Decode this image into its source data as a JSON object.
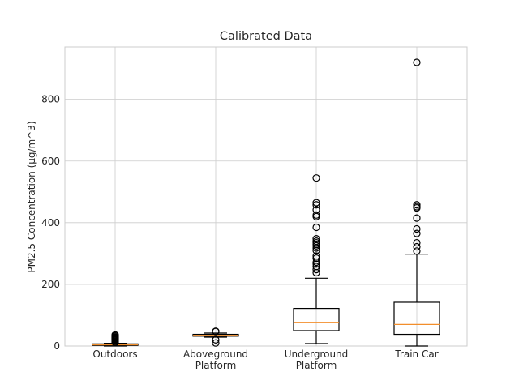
{
  "chart_data": {
    "type": "box",
    "title": "Calibrated Data",
    "xlabel": "",
    "ylabel": "PM2.5 Concentration (µg/m^3)",
    "ylim": [
      0,
      970
    ],
    "yticks": [
      0,
      200,
      400,
      600,
      800
    ],
    "grid": true,
    "categories": [
      "Outdoors",
      "Aboveground\nPlatform",
      "Underground\nPlatform",
      "Train Car"
    ],
    "boxes": [
      {
        "whisker_low": 0,
        "q1": 2,
        "median": 4,
        "q3": 7,
        "whisker_high": 9,
        "fliers": [
          12,
          15,
          18,
          20,
          22,
          24,
          26,
          28,
          30,
          33,
          36
        ]
      },
      {
        "whisker_low": 29,
        "q1": 32,
        "median": 35,
        "q3": 38,
        "whisker_high": 42,
        "fliers": [
          48,
          47,
          20,
          10
        ]
      },
      {
        "whisker_low": 8,
        "q1": 50,
        "median": 77,
        "q3": 122,
        "whisker_high": 220,
        "fliers": [
          238,
          248,
          258,
          266,
          272,
          285,
          292,
          310,
          318,
          325,
          330,
          335,
          340,
          348,
          385,
          420,
          425,
          442,
          458,
          465,
          545
        ]
      },
      {
        "whisker_low": 0,
        "q1": 38,
        "median": 70,
        "q3": 142,
        "whisker_high": 298,
        "fliers": [
          308,
          322,
          335,
          365,
          380,
          415,
          448,
          452,
          458,
          920
        ]
      }
    ]
  }
}
